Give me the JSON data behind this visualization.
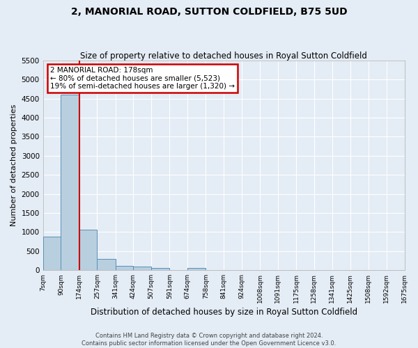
{
  "title": "2, MANORIAL ROAD, SUTTON COLDFIELD, B75 5UD",
  "subtitle": "Size of property relative to detached houses in Royal Sutton Coldfield",
  "xlabel": "Distribution of detached houses by size in Royal Sutton Coldfield",
  "ylabel": "Number of detached properties",
  "footer_line1": "Contains HM Land Registry data © Crown copyright and database right 2024.",
  "footer_line2": "Contains public sector information licensed under the Open Government Licence v3.0.",
  "property_label": "2 MANORIAL ROAD: 178sqm",
  "annotation_line2": "← 80% of detached houses are smaller (5,523)",
  "annotation_line3": "19% of semi-detached houses are larger (1,320) →",
  "bar_edges": [
    7,
    90,
    174,
    257,
    341,
    424,
    507,
    591,
    674,
    758,
    841,
    924,
    1008,
    1091,
    1175,
    1258,
    1341,
    1425,
    1508,
    1592,
    1675
  ],
  "bar_heights": [
    870,
    4600,
    1060,
    290,
    105,
    90,
    55,
    0,
    55,
    0,
    0,
    0,
    0,
    0,
    0,
    0,
    0,
    0,
    0,
    0
  ],
  "tick_labels": [
    "7sqm",
    "90sqm",
    "174sqm",
    "257sqm",
    "341sqm",
    "424sqm",
    "507sqm",
    "591sqm",
    "674sqm",
    "758sqm",
    "841sqm",
    "924sqm",
    "1008sqm",
    "1091sqm",
    "1175sqm",
    "1258sqm",
    "1341sqm",
    "1425sqm",
    "1508sqm",
    "1592sqm",
    "1675sqm"
  ],
  "bar_color": "#b8cfe0",
  "bar_edge_color": "#5a8fb5",
  "vline_color": "#cc0000",
  "vline_x": 174,
  "annotation_box_color": "#cc0000",
  "background_color": "#e4ecf5",
  "grid_color": "#ffffff",
  "ylim_max": 5500,
  "yticks": [
    0,
    500,
    1000,
    1500,
    2000,
    2500,
    3000,
    3500,
    4000,
    4500,
    5000,
    5500
  ],
  "title_fontsize": 10,
  "subtitle_fontsize": 8.5,
  "ylabel_fontsize": 8,
  "xlabel_fontsize": 8.5,
  "tick_fontsize": 6.5,
  "annot_fontsize": 7.5,
  "footer_fontsize": 6
}
